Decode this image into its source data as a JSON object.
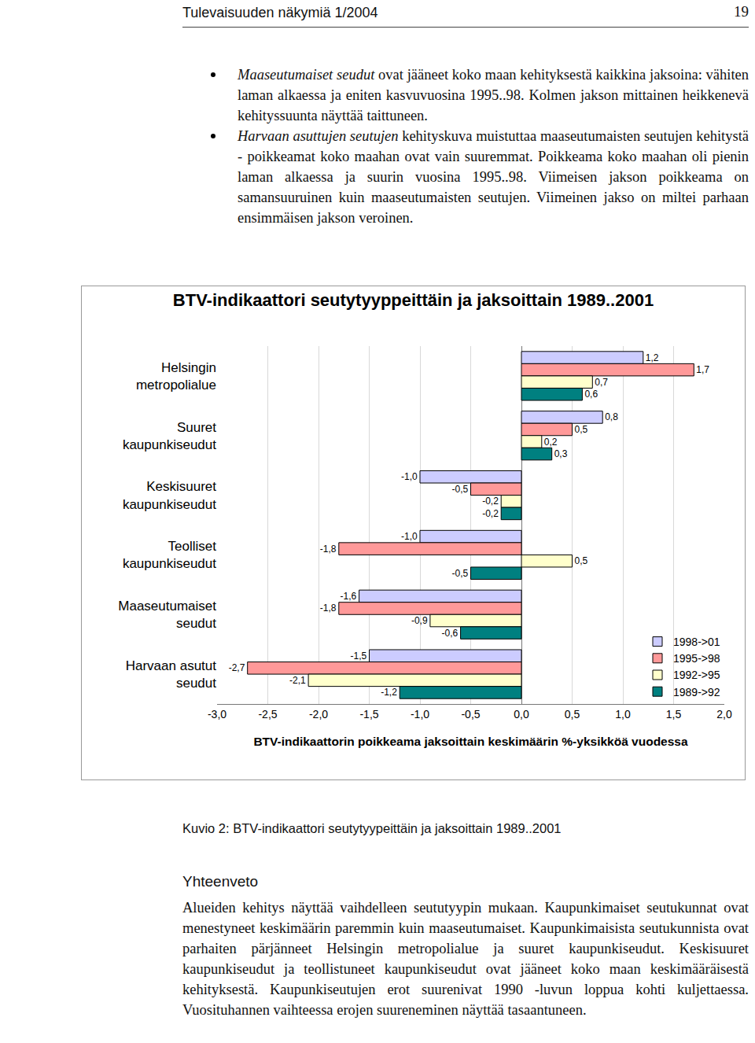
{
  "header": {
    "title": "Tulevaisuuden näkymiä 1/2004",
    "page": "19"
  },
  "bullets": [
    {
      "italic": "Maaseutumaiset seudut",
      "text": " ovat jääneet koko maan kehityksestä kaikkina jaksoina: vähiten laman alkaessa ja eniten kasvuvuosina 1995..98. Kolmen jakson mittainen heikkenevä kehityssuunta näyttää taittuneen."
    },
    {
      "italic": "Harvaan asuttujen seutujen",
      "text": " kehityskuva muistuttaa maaseutumaisten seutujen kehitystä - poikkeamat koko maahan ovat vain suuremmat. Poikkeama koko maahan oli pienin laman alkaessa ja suurin vuosina 1995..98. Viimeisen jakson poikkeama on samansuuruinen kuin maaseutumaisten seutujen. Viimeinen jakso on miltei parhaan ensimmäisen jakson veroinen."
    }
  ],
  "chart_data": {
    "type": "bar",
    "orientation": "horizontal",
    "title": "BTV-indikaattori seutytyyppeittäin ja jaksoittain 1989..2001",
    "x_label": "BTV-indikaattorin poikkeama jaksoittain keskimäärin %-yksikköä vuodessa",
    "categories": [
      "Helsingin metropolialue",
      "Suuret kaupunkiseudut",
      "Keskisuuret kaupunkiseudut",
      "Teolliset kaupunkiseudut",
      "Maaseutumaiset seudut",
      "Harvaan asutut seudut"
    ],
    "series": [
      {
        "name": "1998->01",
        "color": "#ccccff",
        "values": [
          1.2,
          0.8,
          -1.0,
          -1.0,
          -1.6,
          -1.5
        ],
        "value_labels": [
          "1,2",
          "0,8",
          "-1,0",
          "-1,0",
          "-1,6",
          "-1,5"
        ]
      },
      {
        "name": "1995->98",
        "color": "#ff9999",
        "values": [
          1.7,
          0.5,
          -0.5,
          -1.8,
          -1.8,
          -2.7
        ],
        "value_labels": [
          "1,7",
          "0,5",
          "-0,5",
          "-1,8",
          "-1,8",
          "-2,7"
        ]
      },
      {
        "name": "1992->95",
        "color": "#ffffcc",
        "values": [
          0.7,
          0.2,
          -0.2,
          0.5,
          -0.9,
          -2.1
        ],
        "value_labels": [
          "0,7",
          "0,2",
          "-0,2",
          "0,5",
          "-0,9",
          "-2,1"
        ]
      },
      {
        "name": "1989->92",
        "color": "#008080",
        "values": [
          0.6,
          0.3,
          -0.2,
          -0.5,
          -0.6,
          -1.2
        ],
        "value_labels": [
          "0,6",
          "0,3",
          "-0,2",
          "-0,5",
          "-0,6",
          "-1,2"
        ]
      }
    ],
    "xlim": [
      -3.0,
      2.0
    ],
    "xticks": [
      {
        "value": -3.0,
        "label": "-3,0"
      },
      {
        "value": -2.5,
        "label": "-2,5"
      },
      {
        "value": -2.0,
        "label": "-2,0"
      },
      {
        "value": -1.5,
        "label": "-1,5"
      },
      {
        "value": -1.0,
        "label": "-1,0"
      },
      {
        "value": -0.5,
        "label": "-0,5"
      },
      {
        "value": 0.0,
        "label": "0,0"
      },
      {
        "value": 0.5,
        "label": "0,5"
      },
      {
        "value": 1.0,
        "label": "1,0"
      },
      {
        "value": 1.5,
        "label": "1,5"
      },
      {
        "value": 2.0,
        "label": "2,0"
      }
    ],
    "grid": true,
    "legend": "lower right",
    "data_labels": true
  },
  "caption": "Kuvio 2: BTV-indikaattori seutytyypeittäin ja jaksoittain 1989..2001",
  "summary": {
    "heading": "Yhteenveto",
    "text": "Alueiden kehitys näyttää vaihdelleen seututyypin mukaan. Kaupunkimaiset seutukunnat ovat menestyneet keskimäärin paremmin kuin maaseutumaiset. Kaupunkimaisista seutukunnista ovat parhaiten pärjänneet Helsingin metropolialue ja suuret kaupunkiseudut. Keskisuuret kaupunkiseudut ja teollistuneet kaupunkiseudut ovat jääneet koko maan keskimääräisestä kehityksestä. Kaupunkiseutujen erot suurenivat 1990 -luvun loppua kohti kuljettaessa. Vuosituhannen vaihteessa erojen suureneminen näyttää tasaantuneen."
  }
}
